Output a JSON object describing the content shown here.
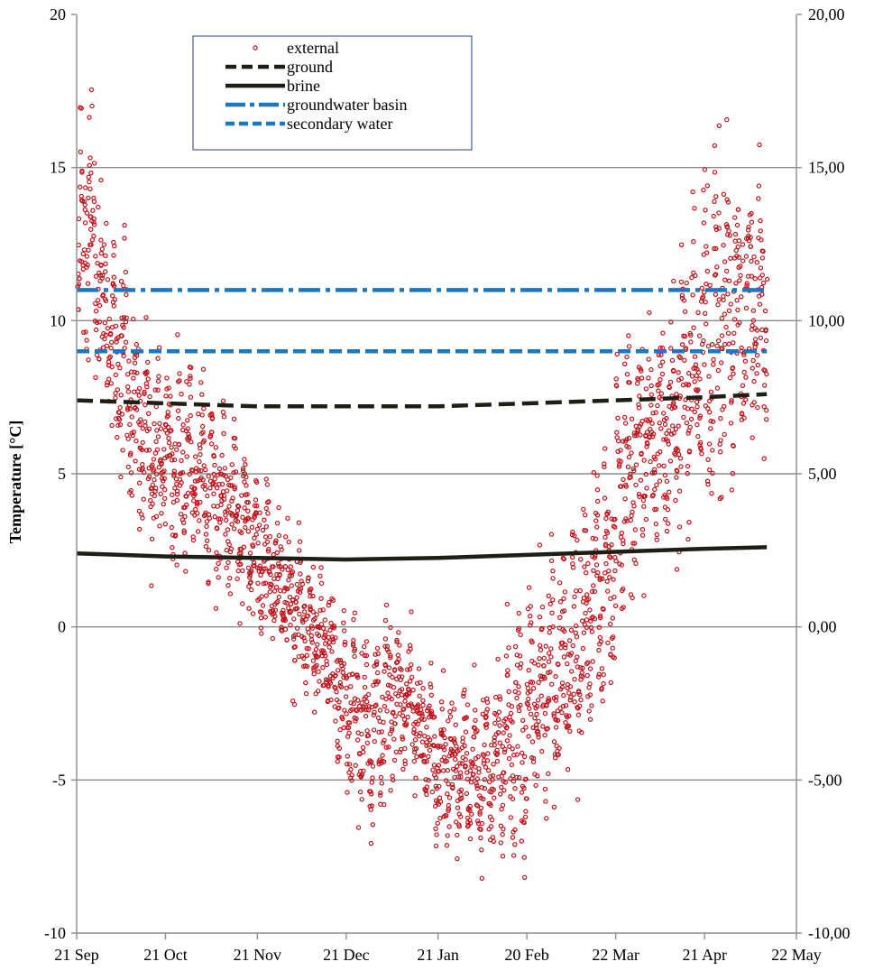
{
  "chart_data": {
    "type": "scatter",
    "ylabel": "Temperature  [°C]",
    "ylim": [
      -10,
      20
    ],
    "yticks": [
      -10,
      -5,
      0,
      5,
      10,
      15,
      20
    ],
    "yticks_left_labels": [
      "-10",
      "-5",
      "0",
      "5",
      "10",
      "15",
      "20"
    ],
    "yticks_right_labels": [
      "-10,00",
      "-5,00",
      "0,00",
      "5,00",
      "10,00",
      "15,00",
      "20,00"
    ],
    "xlim": [
      "21 Sep",
      "22 May"
    ],
    "xtick_labels": [
      "21 Sep",
      "21 Oct",
      "21 Nov",
      "21 Dec",
      "21 Jan",
      "20 Feb",
      "22 Mar",
      "21 Apr",
      "22 May"
    ],
    "x_range_days": [
      0,
      243
    ],
    "xtick_days": [
      0,
      30,
      61,
      91,
      122,
      152,
      182,
      212,
      243
    ],
    "gridlines": "horizontal",
    "legend_position": "top-left",
    "legend": [
      "external",
      "ground",
      "brine",
      "groundwater basin",
      "secondary water"
    ],
    "series": [
      {
        "name": "external",
        "type": "scatter",
        "color": "#c0141c",
        "envelope_days": [
          0,
          4,
          8,
          15,
          25,
          40,
          55,
          70,
          85,
          90,
          100,
          110,
          120,
          130,
          140,
          150,
          160,
          170,
          180,
          185,
          195,
          205,
          210,
          218,
          225,
          233
        ],
        "envelope_high": [
          16.5,
          19.5,
          16.5,
          14,
          10,
          10,
          7,
          4.5,
          2.5,
          1.5,
          1.2,
          1.3,
          -0.8,
          -0.8,
          -1.2,
          2.5,
          3.5,
          5.5,
          7.5,
          11.5,
          12,
          14.5,
          15,
          18.5,
          18,
          16.5
        ],
        "envelope_low": [
          6.5,
          8,
          5.5,
          3,
          1.2,
          0.5,
          -0.2,
          -2,
          -4.5,
          -6.2,
          -8,
          -5.5,
          -7.5,
          -8.2,
          -8.5,
          -9.5,
          -7,
          -6.5,
          -4,
          -1,
          0,
          1.2,
          2.5,
          2.5,
          3,
          4.5
        ]
      },
      {
        "name": "ground",
        "type": "line",
        "style": "dashed",
        "color": "#1e1e14",
        "x": [
          "21 Sep",
          "21 Oct",
          "21 Nov",
          "21 Dec",
          "21 Jan",
          "20 Feb",
          "22 Mar",
          "21 Apr",
          "12 May"
        ],
        "y": [
          7.4,
          7.3,
          7.2,
          7.2,
          7.2,
          7.3,
          7.4,
          7.5,
          7.6
        ]
      },
      {
        "name": "brine",
        "type": "line",
        "style": "solid",
        "color": "#1e1e14",
        "x": [
          "21 Sep",
          "21 Oct",
          "21 Nov",
          "21 Dec",
          "21 Jan",
          "20 Feb",
          "22 Mar",
          "21 Apr",
          "12 May"
        ],
        "y": [
          2.4,
          2.3,
          2.25,
          2.2,
          2.25,
          2.35,
          2.45,
          2.55,
          2.6
        ]
      },
      {
        "name": "groundwater basin",
        "type": "line",
        "style": "dash-dot",
        "color": "#1a78c2",
        "x": [
          "21 Sep",
          "12 May"
        ],
        "y": [
          11.0,
          11.0
        ]
      },
      {
        "name": "secondary water",
        "type": "line",
        "style": "dashed",
        "color": "#1a78c2",
        "x": [
          "21 Sep",
          "12 May"
        ],
        "y": [
          9.0,
          9.0
        ]
      }
    ]
  }
}
